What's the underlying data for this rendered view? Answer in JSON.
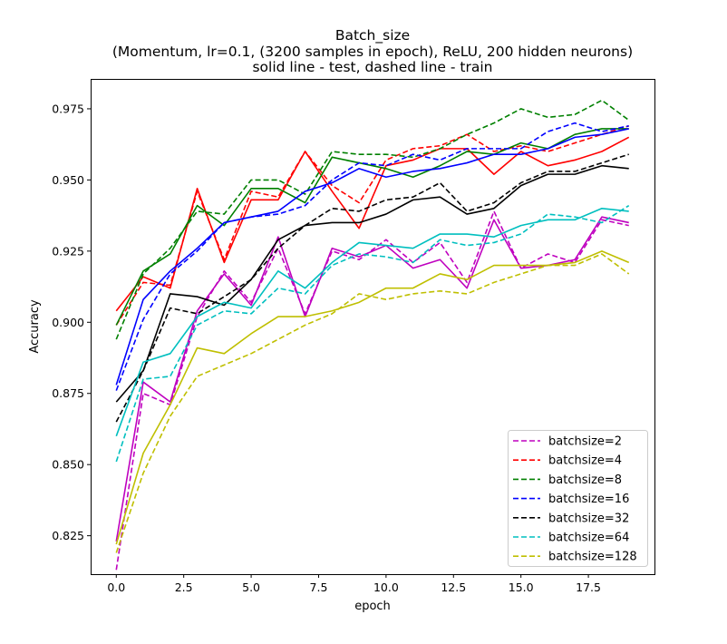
{
  "chart_data": {
    "type": "line",
    "title": "Batch_size",
    "subtitle": "(Momentum, lr=0.1, (3200 samples in epoch), ReLU, 200 hidden neurons)",
    "note": "solid line - test, dashed line - train",
    "xlabel": "epoch",
    "ylabel": "Accuracy",
    "xlim": [
      -0.95,
      19.95
    ],
    "ylim": [
      0.8115,
      0.9855
    ],
    "xticks": [
      "0.0",
      "2.5",
      "5.0",
      "7.5",
      "10.0",
      "12.5",
      "15.0",
      "17.5"
    ],
    "yticks": [
      "0.825",
      "0.850",
      "0.875",
      "0.900",
      "0.925",
      "0.950",
      "0.975"
    ],
    "legend_position": "lower-right",
    "x": [
      0,
      1,
      2,
      3,
      4,
      5,
      6,
      7,
      8,
      9,
      10,
      11,
      12,
      13,
      14,
      15,
      16,
      17,
      18,
      19
    ],
    "series": [
      {
        "name": "batchsize=2",
        "color": "#bf00bf",
        "test": [
          0.823,
          0.879,
          0.872,
          0.904,
          0.917,
          0.906,
          0.93,
          0.902,
          0.926,
          0.923,
          0.927,
          0.919,
          0.922,
          0.912,
          0.936,
          0.919,
          0.92,
          0.922,
          0.937,
          0.935
        ],
        "train": [
          0.813,
          0.875,
          0.871,
          0.902,
          0.918,
          0.907,
          0.926,
          0.903,
          0.925,
          0.922,
          0.929,
          0.921,
          0.928,
          0.914,
          0.939,
          0.919,
          0.924,
          0.921,
          0.936,
          0.934
        ]
      },
      {
        "name": "batchsize=4",
        "color": "#ff0000",
        "test": [
          0.904,
          0.916,
          0.912,
          0.947,
          0.921,
          0.943,
          0.943,
          0.96,
          0.946,
          0.933,
          0.955,
          0.957,
          0.961,
          0.961,
          0.952,
          0.96,
          0.955,
          0.957,
          0.96,
          0.965
        ],
        "train": [
          0.899,
          0.914,
          0.913,
          0.946,
          0.922,
          0.946,
          0.944,
          0.96,
          0.948,
          0.942,
          0.957,
          0.961,
          0.962,
          0.966,
          0.96,
          0.962,
          0.96,
          0.963,
          0.966,
          0.969
        ]
      },
      {
        "name": "batchsize=8",
        "color": "#008000",
        "test": [
          0.899,
          0.918,
          0.924,
          0.941,
          0.934,
          0.947,
          0.947,
          0.942,
          0.958,
          0.956,
          0.954,
          0.951,
          0.955,
          0.96,
          0.959,
          0.963,
          0.961,
          0.966,
          0.968,
          0.968
        ],
        "train": [
          0.894,
          0.917,
          0.926,
          0.939,
          0.938,
          0.95,
          0.95,
          0.945,
          0.96,
          0.959,
          0.959,
          0.958,
          0.961,
          0.966,
          0.97,
          0.975,
          0.972,
          0.973,
          0.978,
          0.971
        ]
      },
      {
        "name": "batchsize=16",
        "color": "#0000ff",
        "test": [
          0.878,
          0.908,
          0.918,
          0.926,
          0.935,
          0.937,
          0.939,
          0.946,
          0.949,
          0.954,
          0.951,
          0.953,
          0.954,
          0.956,
          0.959,
          0.959,
          0.961,
          0.965,
          0.966,
          0.968
        ],
        "train": [
          0.876,
          0.901,
          0.917,
          0.925,
          0.935,
          0.937,
          0.938,
          0.941,
          0.95,
          0.956,
          0.955,
          0.959,
          0.957,
          0.961,
          0.961,
          0.961,
          0.967,
          0.97,
          0.967,
          0.969
        ]
      },
      {
        "name": "batchsize=32",
        "color": "#000000",
        "test": [
          0.872,
          0.883,
          0.91,
          0.909,
          0.906,
          0.915,
          0.929,
          0.934,
          0.935,
          0.935,
          0.938,
          0.943,
          0.944,
          0.938,
          0.94,
          0.948,
          0.952,
          0.952,
          0.955,
          0.954
        ],
        "train": [
          0.865,
          0.883,
          0.905,
          0.903,
          0.909,
          0.915,
          0.926,
          0.934,
          0.94,
          0.939,
          0.943,
          0.944,
          0.949,
          0.939,
          0.942,
          0.949,
          0.953,
          0.953,
          0.956,
          0.959
        ]
      },
      {
        "name": "batchsize=64",
        "color": "#00bfbf",
        "test": [
          0.86,
          0.886,
          0.889,
          0.902,
          0.907,
          0.905,
          0.918,
          0.912,
          0.921,
          0.928,
          0.927,
          0.926,
          0.931,
          0.931,
          0.93,
          0.934,
          0.936,
          0.936,
          0.94,
          0.939
        ],
        "train": [
          0.851,
          0.88,
          0.881,
          0.899,
          0.904,
          0.903,
          0.912,
          0.91,
          0.92,
          0.924,
          0.923,
          0.921,
          0.929,
          0.927,
          0.928,
          0.931,
          0.938,
          0.937,
          0.935,
          0.941
        ]
      },
      {
        "name": "batchsize=128",
        "color": "#bfbf00",
        "test": [
          0.822,
          0.854,
          0.871,
          0.891,
          0.889,
          0.896,
          0.902,
          0.902,
          0.904,
          0.907,
          0.912,
          0.912,
          0.917,
          0.915,
          0.92,
          0.92,
          0.92,
          0.921,
          0.925,
          0.921
        ],
        "train": [
          0.819,
          0.847,
          0.867,
          0.881,
          0.885,
          0.889,
          0.894,
          0.899,
          0.903,
          0.91,
          0.908,
          0.91,
          0.911,
          0.91,
          0.914,
          0.917,
          0.92,
          0.92,
          0.924,
          0.917
        ]
      }
    ]
  }
}
